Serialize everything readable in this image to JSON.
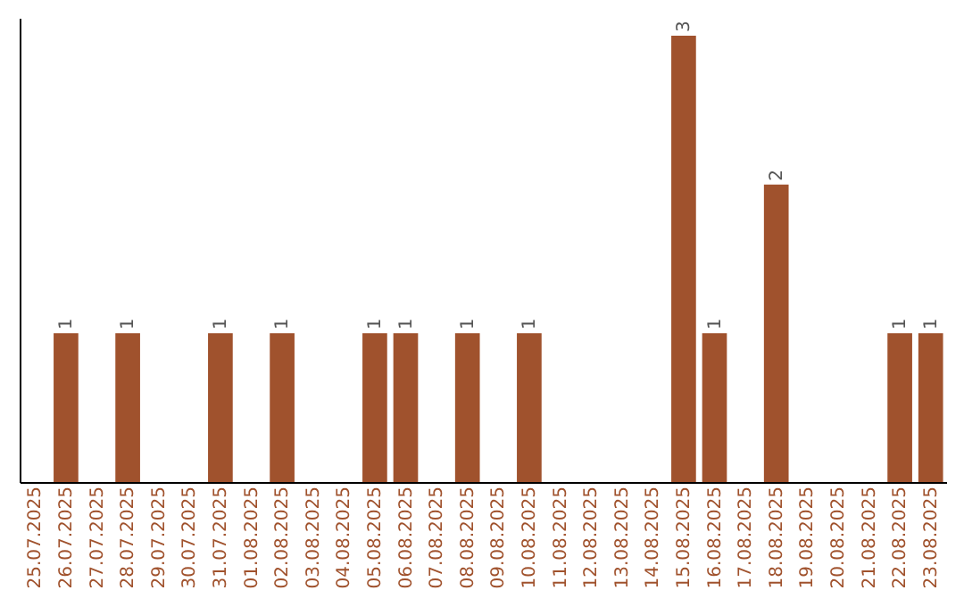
{
  "chart_data": {
    "type": "bar",
    "categories": [
      "25.07.2025",
      "26.07.2025",
      "27.07.2025",
      "28.07.2025",
      "29.07.2025",
      "30.07.2025",
      "31.07.2025",
      "01.08.2025",
      "02.08.2025",
      "03.08.2025",
      "04.08.2025",
      "05.08.2025",
      "06.08.2025",
      "07.08.2025",
      "08.08.2025",
      "09.08.2025",
      "10.08.2025",
      "11.08.2025",
      "12.08.2025",
      "13.08.2025",
      "14.08.2025",
      "15.08.2025",
      "16.08.2025",
      "17.08.2025",
      "18.08.2025",
      "19.08.2025",
      "20.08.2025",
      "21.08.2025",
      "22.08.2025",
      "23.08.2025"
    ],
    "values": [
      0,
      1,
      0,
      1,
      0,
      0,
      1,
      0,
      1,
      0,
      0,
      1,
      1,
      0,
      1,
      0,
      1,
      0,
      0,
      0,
      0,
      3,
      1,
      0,
      2,
      0,
      0,
      0,
      1,
      1
    ],
    "value_labels": [
      null,
      "1",
      null,
      "1",
      null,
      null,
      "1",
      null,
      "1",
      null,
      null,
      "1",
      "1",
      null,
      "1",
      null,
      "1",
      null,
      null,
      null,
      null,
      "3",
      "1",
      null,
      "2",
      null,
      null,
      null,
      "1",
      "1"
    ],
    "color": "#a0522d",
    "ylim": [
      0,
      3.12
    ],
    "tick_labels": "x",
    "grid": false
  }
}
